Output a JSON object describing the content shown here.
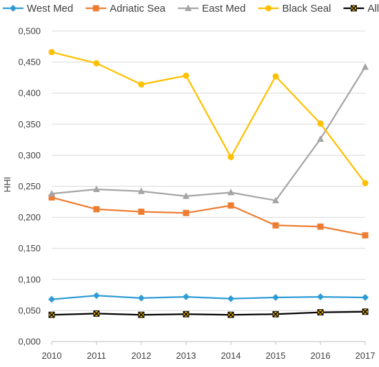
{
  "chart_data": {
    "type": "line",
    "title": "",
    "xlabel": "",
    "ylabel": "HHI",
    "ylim": [
      0,
      0.5
    ],
    "y_tick_step": 0.05,
    "y_tick_labels": [
      "0,000",
      "0,050",
      "0,100",
      "0,150",
      "0,200",
      "0,250",
      "0,300",
      "0,350",
      "0,400",
      "0,450",
      "0,500"
    ],
    "categories": [
      "2010",
      "2011",
      "2012",
      "2013",
      "2014",
      "2015",
      "2016",
      "2017"
    ],
    "grid": "horizontal",
    "legend_position": "top",
    "series": [
      {
        "name": "West Med",
        "color": "#2e9bd6",
        "marker": "diamond",
        "values": [
          0.068,
          0.074,
          0.07,
          0.072,
          0.069,
          0.071,
          0.072,
          0.071
        ]
      },
      {
        "name": "Adriatic Sea",
        "color": "#ed7d31",
        "marker": "square",
        "values": [
          0.232,
          0.213,
          0.209,
          0.207,
          0.219,
          0.187,
          0.185,
          0.171
        ]
      },
      {
        "name": "East Med",
        "color": "#a5a5a5",
        "marker": "triangle",
        "values": [
          0.238,
          0.245,
          0.242,
          0.234,
          0.24,
          0.227,
          0.326,
          0.442
        ]
      },
      {
        "name": "Black Seal",
        "color": "#ffc000",
        "marker": "circle",
        "values": [
          0.466,
          0.448,
          0.414,
          0.428,
          0.297,
          0.427,
          0.351,
          0.255
        ]
      },
      {
        "name": "All",
        "color": "#000000",
        "marker": "x-square",
        "marker_fill": "#ffc000",
        "values": [
          0.043,
          0.045,
          0.043,
          0.044,
          0.043,
          0.044,
          0.047,
          0.048
        ]
      }
    ]
  }
}
